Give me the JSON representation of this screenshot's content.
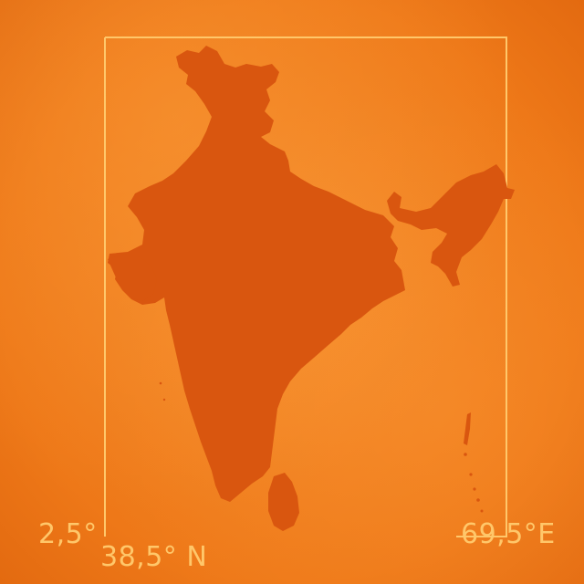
{
  "coordinates": {
    "bottom_left": "2,5°",
    "bottom_center": "38,5° N",
    "bottom_right": "69,5°E"
  },
  "colors": {
    "background": "#f07d1e",
    "landmass": "#d9560f",
    "frame_line": "#ffc76a",
    "label_text": "#ffc76a"
  }
}
